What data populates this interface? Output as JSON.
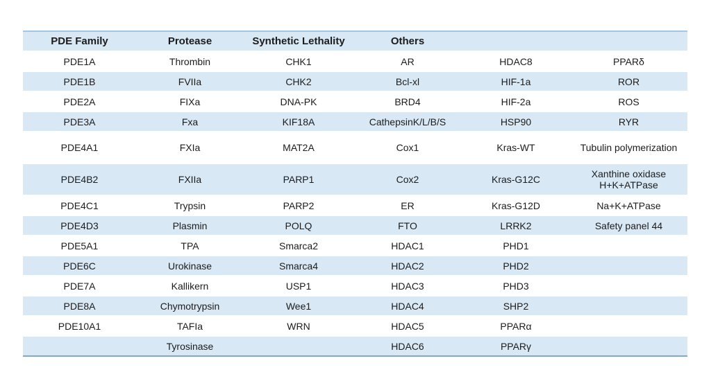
{
  "colors": {
    "stripe_blue": "#d9e8f5",
    "border_top": "#a4c7e1",
    "border_bottom": "#82a8c6",
    "text": "#1c1c1c",
    "background": "#ffffff"
  },
  "table": {
    "columns": [
      "PDE Family",
      "Protease",
      "Synthetic Lethality",
      "Others",
      "",
      ""
    ],
    "tall_rows": [
      4,
      5
    ],
    "rows": [
      [
        "PDE1A",
        "Thrombin",
        "CHK1",
        "AR",
        "HDAC8",
        "PPARδ"
      ],
      [
        "PDE1B",
        "FVIIa",
        "CHK2",
        "Bcl-xl",
        "HIF-1a",
        "ROR"
      ],
      [
        "PDE2A",
        "FIXa",
        "DNA-PK",
        "BRD4",
        "HIF-2a",
        "ROS"
      ],
      [
        "PDE3A",
        "Fxa",
        "KIF18A",
        "CathepsinK/L/B/S",
        "HSP90",
        "RYR"
      ],
      [
        "PDE4A1",
        "FXIa",
        "MAT2A",
        "Cox1",
        "Kras-WT",
        "Tubulin polymerization"
      ],
      [
        "PDE4B2",
        "FXIIa",
        "PARP1",
        "Cox2",
        "Kras-G12C",
        "Xanthine oxidase\nH+K+ATPase"
      ],
      [
        "PDE4C1",
        "Trypsin",
        "PARP2",
        "ER",
        "Kras-G12D",
        "Na+K+ATPase"
      ],
      [
        "PDE4D3",
        "Plasmin",
        "POLQ",
        "FTO",
        "LRRK2",
        "Safety panel 44"
      ],
      [
        "PDE5A1",
        "TPA",
        "Smarca2",
        "HDAC1",
        "PHD1",
        ""
      ],
      [
        "PDE6C",
        "Urokinase",
        "Smarca4",
        "HDAC2",
        "PHD2",
        ""
      ],
      [
        "PDE7A",
        "Kallikern",
        "USP1",
        "HDAC3",
        "PHD3",
        ""
      ],
      [
        "PDE8A",
        "Chymotrypsin",
        "Wee1",
        "HDAC4",
        "SHP2",
        ""
      ],
      [
        "PDE10A1",
        "TAFIa",
        "WRN",
        "HDAC5",
        "PPARα",
        ""
      ],
      [
        "",
        "Tyrosinase",
        "",
        "HDAC6",
        "PPARγ",
        ""
      ]
    ]
  }
}
